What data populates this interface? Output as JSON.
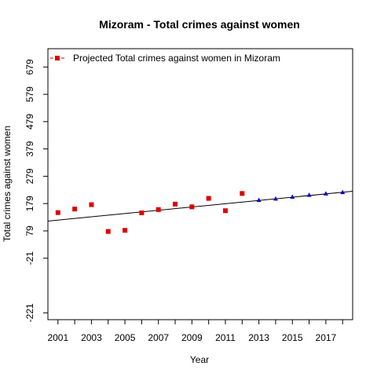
{
  "chart_data": {
    "type": "scatter",
    "title": "Mizoram  -  Total crimes against women",
    "xlabel": "Year",
    "ylabel": "Total crimes against women",
    "xlim": [
      2000.4,
      2018.6
    ],
    "ylim": [
      -246,
      746
    ],
    "x_ticks": [
      2001,
      2003,
      2005,
      2007,
      2009,
      2011,
      2013,
      2015,
      2017
    ],
    "y_ticks": [
      -221,
      -21,
      79,
      179,
      279,
      379,
      479,
      579,
      679
    ],
    "grid": false,
    "legend": {
      "position": "top-left",
      "entries": [
        "Projected  Total crimes against women  in  Mizoram"
      ]
    },
    "series": [
      {
        "kind": "observed",
        "color": "#dd0000",
        "marker": "square",
        "x": [
          2001,
          2002,
          2003,
          2004,
          2005,
          2006,
          2007,
          2008,
          2009,
          2010,
          2011,
          2012
        ],
        "y": [
          146,
          159,
          175,
          77,
          81,
          145,
          157,
          177,
          167,
          198,
          153,
          216
        ]
      },
      {
        "kind": "projected",
        "color": "#0000cc",
        "marker": "triangle",
        "x": [
          2013,
          2014,
          2015,
          2016,
          2017,
          2018
        ],
        "y": [
          192,
          197,
          204,
          211,
          216,
          221
        ]
      }
    ],
    "trend_line": {
      "x": [
        2000.4,
        2018.6
      ],
      "y": [
        115,
        224
      ],
      "color": "#000000"
    }
  }
}
